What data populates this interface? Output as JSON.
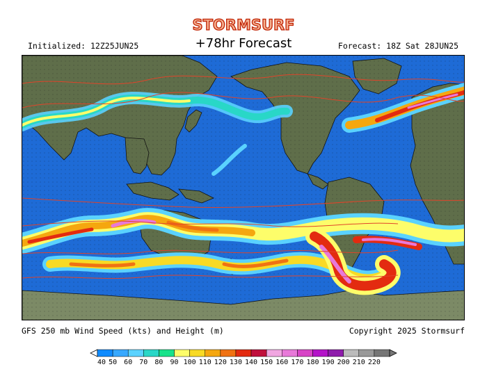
{
  "header": {
    "brand": "STORMSURF",
    "initialized": "Initialized: 12Z25JUN25",
    "title": "+78hr Forecast",
    "forecast": "Forecast: 18Z Sat 28JUN25"
  },
  "footer": {
    "caption": "GFS 250 mb Wind Speed (kts) and Height (m)",
    "copyright": "Copyright 2025 Stormsurf"
  },
  "legend": {
    "units": "kts",
    "labels": [
      "40",
      "50",
      "60",
      "70",
      "80",
      "90",
      "100",
      "110",
      "120",
      "130",
      "140",
      "150",
      "160",
      "170",
      "180",
      "190",
      "200",
      "210",
      "220"
    ],
    "colors": [
      "#0f8bff",
      "#37a8ff",
      "#5ad2ff",
      "#29d7c7",
      "#18e28a",
      "#fdfd6a",
      "#f8da25",
      "#f5a70f",
      "#f07212",
      "#e32b10",
      "#c0103c",
      "#f1a6e1",
      "#e879d9",
      "#d744c6",
      "#b414c9",
      "#8e1cab",
      "#bbbbbb",
      "#999999",
      "#767676"
    ],
    "ocean_color": "#1e6bd6",
    "land_color": "#5f6e4a",
    "height_contour_color": "#e0442a"
  }
}
